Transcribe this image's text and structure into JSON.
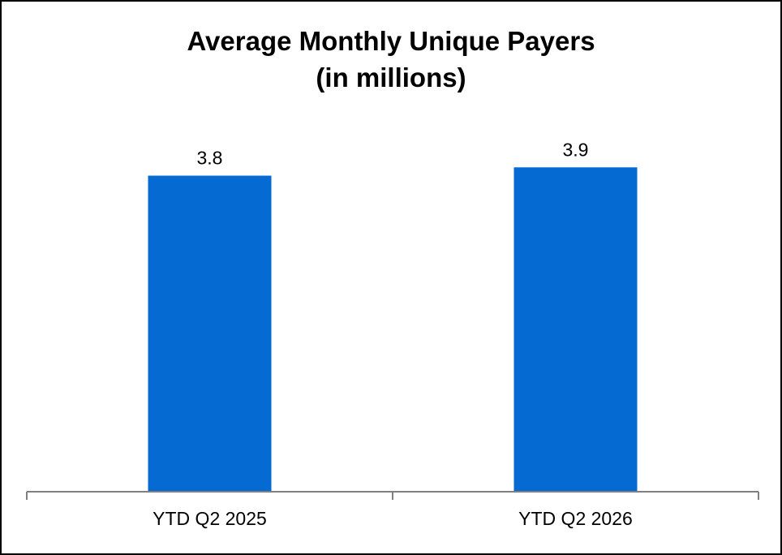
{
  "chart_data": {
    "type": "bar",
    "title_lines": [
      "Average Monthly Unique Payers",
      "(in millions)"
    ],
    "categories": [
      "YTD Q2 2025",
      "YTD Q2 2026"
    ],
    "series": [
      {
        "values": [
          3.8,
          3.9
        ]
      }
    ],
    "data_labels": [
      "3.8",
      "3.9"
    ],
    "ylim": [
      0,
      4.0
    ],
    "grid": false,
    "legend": "none",
    "colors": {
      "bar": "#056AD1",
      "axis": "#808080",
      "border": "#000000"
    }
  }
}
